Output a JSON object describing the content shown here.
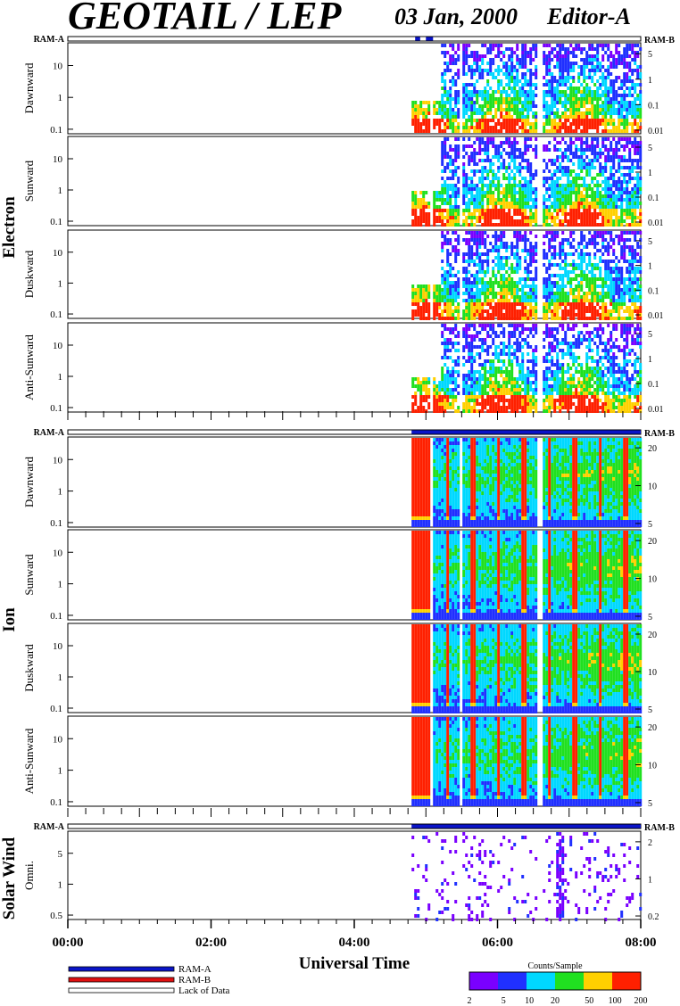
{
  "header": {
    "title": "GEOTAIL / LEP",
    "date": "03 Jan, 2000",
    "editor": "Editor-A"
  },
  "chart_data": {
    "type": "heatmap",
    "x_axis": {
      "label": "Universal Time",
      "range_hours": [
        0,
        8
      ],
      "tick_labels": [
        "00:00",
        "02:00",
        "04:00",
        "06:00",
        "08:00"
      ],
      "tick_values": [
        0,
        2,
        4,
        6,
        8
      ]
    },
    "groups": [
      {
        "name": "Electron",
        "ram_labels": [
          "RAM-A",
          "RAM-B"
        ],
        "ram_segments": [
          {
            "start": 4.85,
            "end": 4.92
          },
          {
            "start": 5.0,
            "end": 5.1
          }
        ],
        "right_tick_labels": [
          "5",
          "1",
          "0.1",
          "0.01"
        ],
        "panels": [
          {
            "label": "Dawnward",
            "y_ticks": [
              "10",
              "1",
              "0.1"
            ]
          },
          {
            "label": "Sunward",
            "y_ticks": [
              "10",
              "1",
              "0.1"
            ]
          },
          {
            "label": "Duskward",
            "y_ticks": [
              "10",
              "1",
              "0.1"
            ]
          },
          {
            "label": "Anti-Sunward",
            "y_ticks": [
              "10",
              "1",
              "0.1"
            ]
          }
        ],
        "data_start_hour": 4.8
      },
      {
        "name": "Ion",
        "ram_labels": [
          "RAM-A",
          "RAM-B"
        ],
        "ram_segments": [
          {
            "start": 4.8,
            "end": 8.0
          }
        ],
        "right_tick_labels": [
          "20",
          "10",
          "5"
        ],
        "panels": [
          {
            "label": "Dawnward",
            "y_ticks": [
              "10",
              "1",
              "0.1"
            ]
          },
          {
            "label": "Sunward",
            "y_ticks": [
              "10",
              "1",
              "0.1"
            ]
          },
          {
            "label": "Duskward",
            "y_ticks": [
              "10",
              "1",
              "0.1"
            ]
          },
          {
            "label": "Anti-Sunward",
            "y_ticks": [
              "10",
              "1",
              "0.1"
            ]
          }
        ],
        "data_start_hour": 4.8
      },
      {
        "name": "Solar Wind",
        "ram_labels": [
          "RAM-A",
          "RAM-B"
        ],
        "ram_segments": [
          {
            "start": 4.8,
            "end": 8.0
          }
        ],
        "right_tick_labels": [
          "2",
          "1",
          "0.2"
        ],
        "panels": [
          {
            "label": "Omni.",
            "y_ticks": [
              "5",
              "1",
              "0.5"
            ]
          }
        ],
        "data_start_hour": 4.8
      }
    ],
    "legend": {
      "items": [
        {
          "label": "RAM-A",
          "color": "#0a14c8"
        },
        {
          "label": "RAM-B",
          "color": "#e01010"
        },
        {
          "label": "Lack of Data",
          "color": "#ffffff"
        }
      ]
    },
    "colorbar": {
      "title": "Counts/Sample",
      "tick_labels": [
        "2",
        "5",
        "10",
        "20",
        "50",
        "100",
        "200"
      ],
      "range": [
        2,
        200
      ],
      "scale": "log"
    },
    "colors": {
      "low": "#7a00ff",
      "mid_low": "#2030ff",
      "mid": "#00d8ff",
      "mid_high": "#20e020",
      "high": "#ffd000",
      "max": "#ff2000"
    }
  }
}
